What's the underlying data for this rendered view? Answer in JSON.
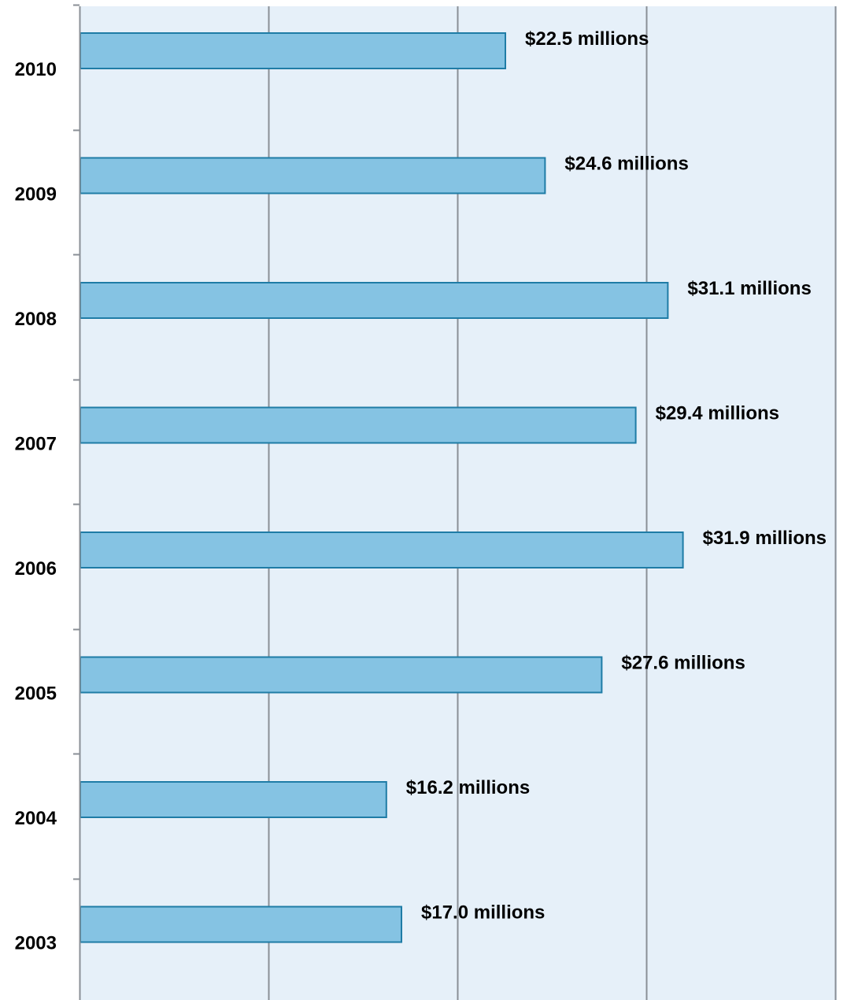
{
  "chart_data": {
    "type": "bar",
    "orientation": "horizontal",
    "title": "",
    "xlabel": "",
    "ylabel": "",
    "categories": [
      "2010",
      "2009",
      "2008",
      "2007",
      "2006",
      "2005",
      "2004",
      "2003"
    ],
    "values": [
      22.5,
      24.6,
      31.1,
      29.4,
      31.9,
      27.6,
      16.2,
      17.0
    ],
    "data_labels": [
      "$22.5 millions",
      "$24.6 millions",
      "$31.1 millions",
      "$29.4 millions",
      "$31.9 millions",
      "$27.6 millions",
      "$16.2 millions",
      "$17.0 millions"
    ],
    "xlim": [
      0,
      40
    ],
    "x_gridlines": [
      0,
      10,
      20,
      30,
      40
    ],
    "x_tick_labels_shown": false,
    "grid": true,
    "legend": "none",
    "colors": {
      "bar_fill": "#85c3e3",
      "bar_stroke": "#1f7ca6",
      "plot_background": "#e6f0f9",
      "gridline": "#8a8f96",
      "axis": "#8a8f96"
    }
  }
}
